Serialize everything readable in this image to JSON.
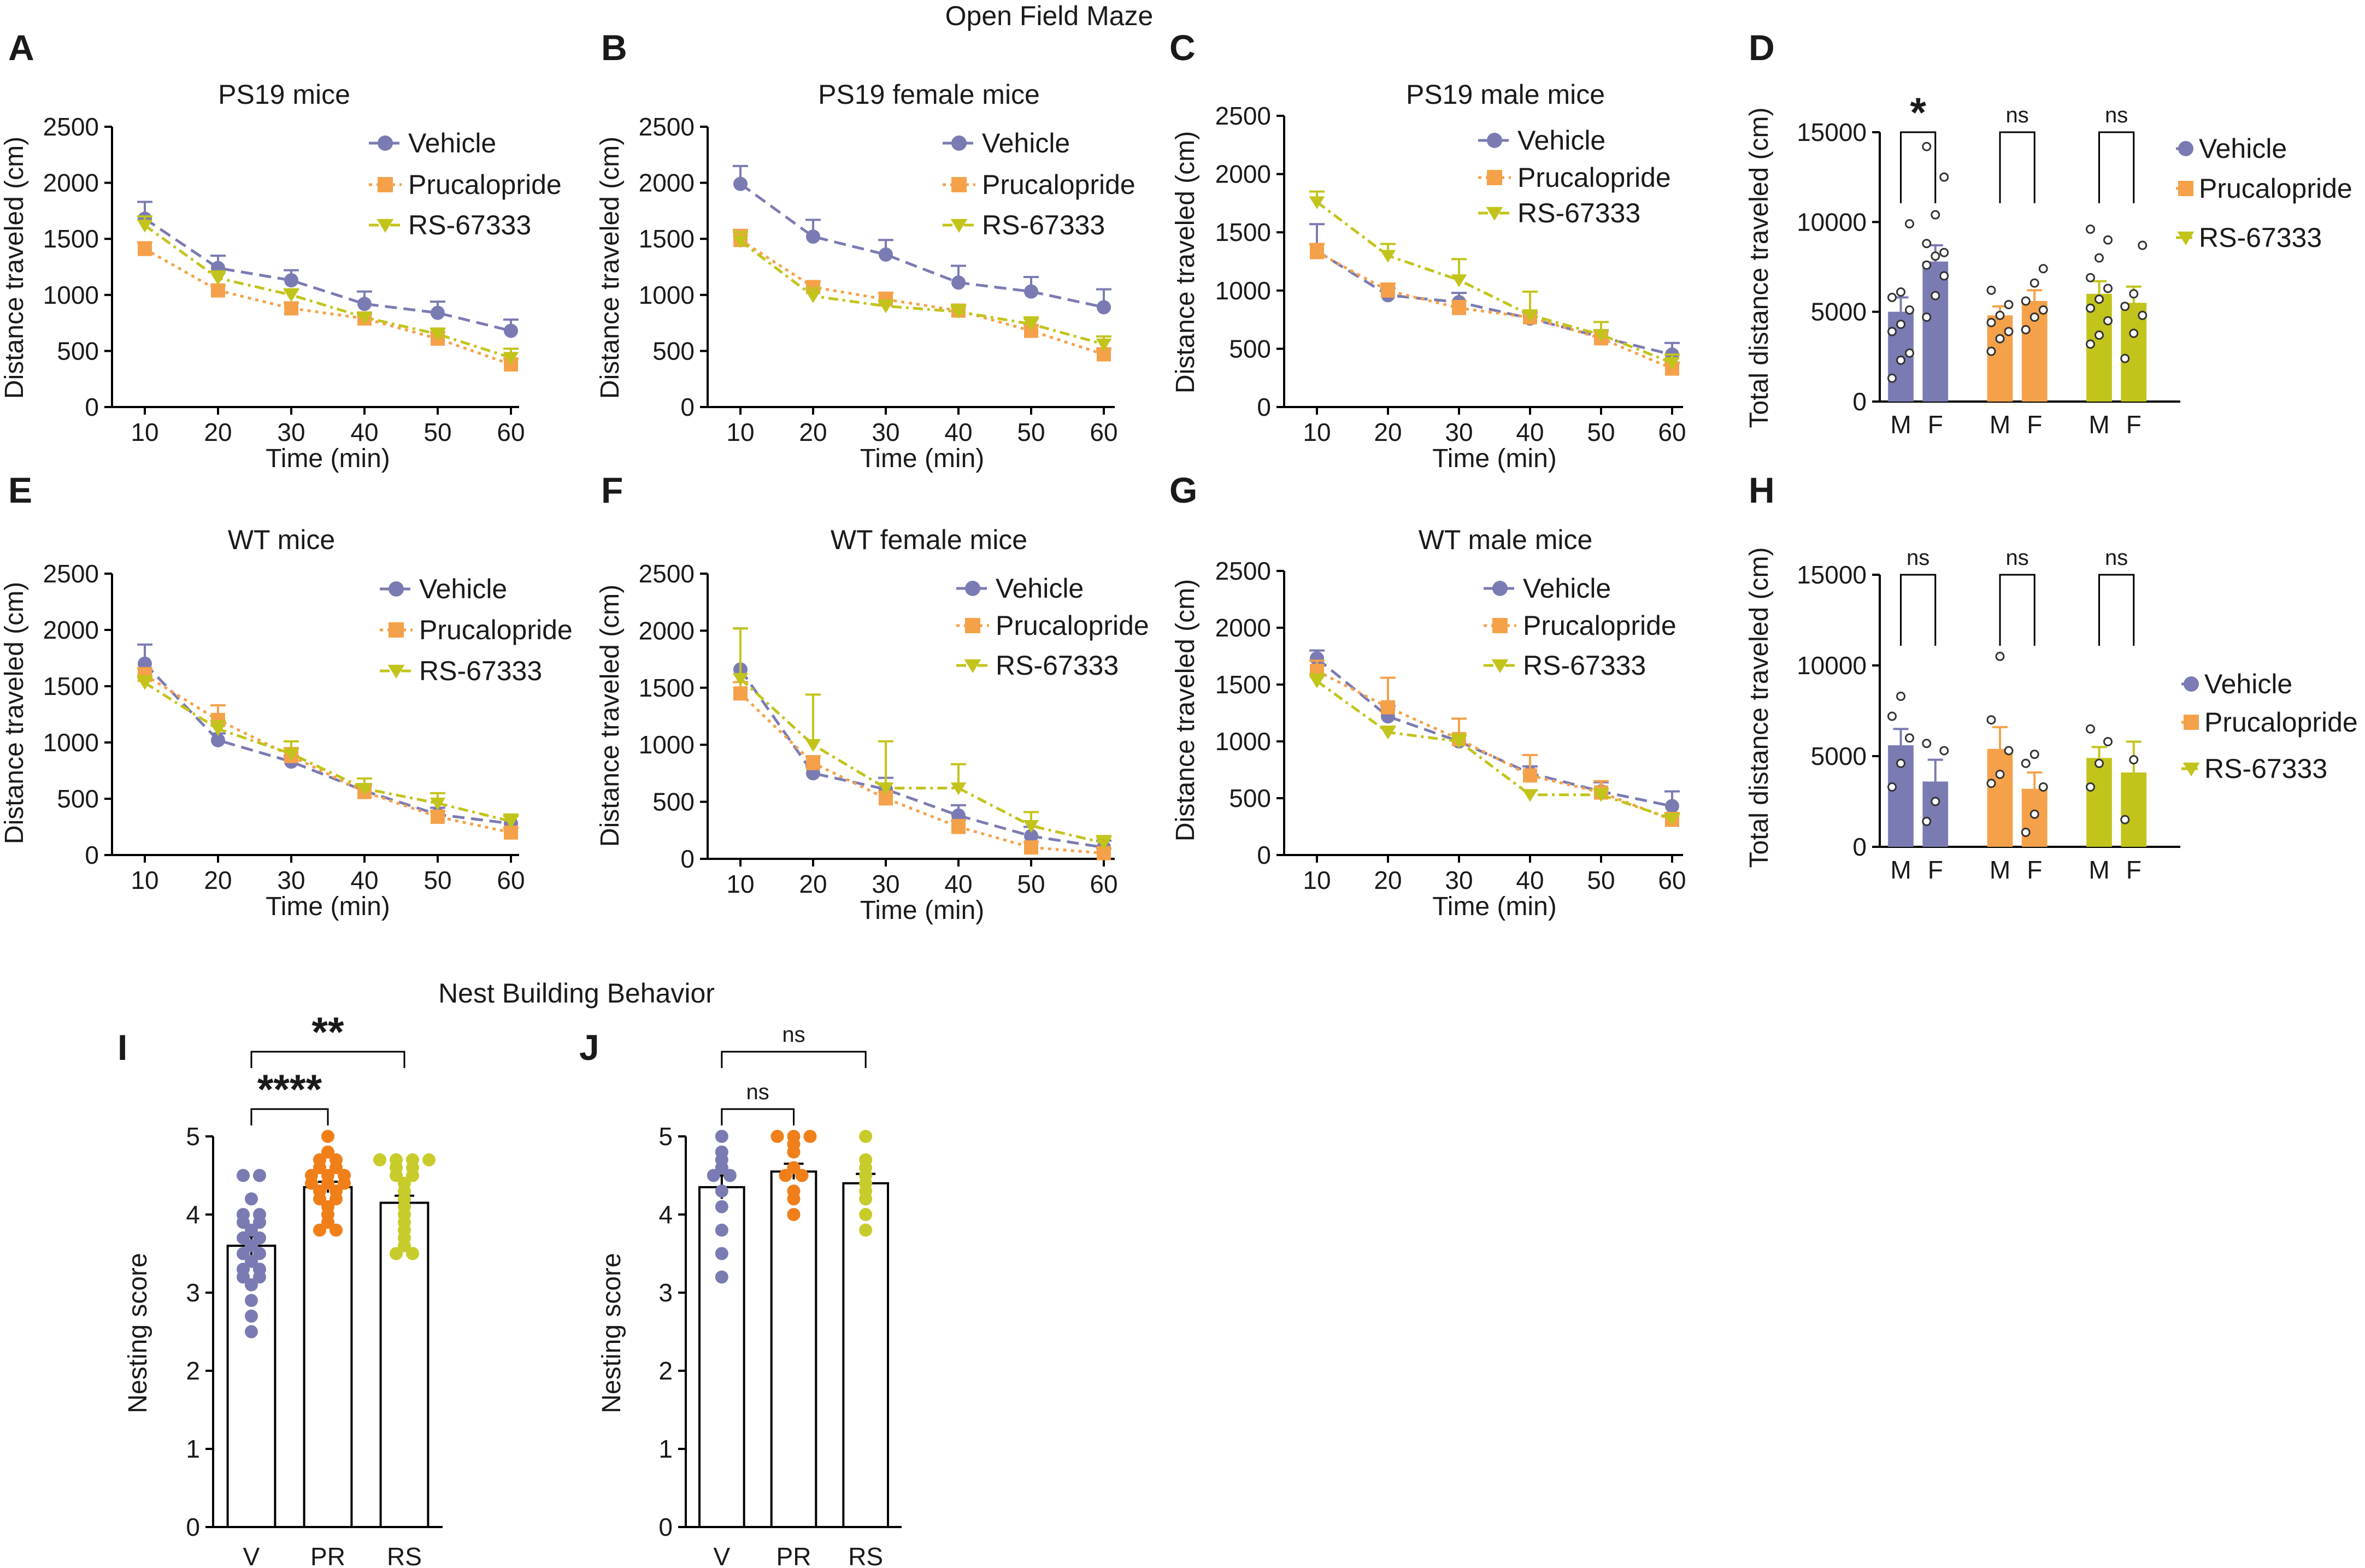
{
  "sections": {
    "open_field": "Open Field Maze",
    "nest": "Nest Building Behavior"
  },
  "colors": {
    "vehicle": "#7b7bb3",
    "prucalopride": "#f5a14a",
    "rs": "#c2c41c",
    "pr_dot": "#f07f1a",
    "rs_dot": "#c7cc2a"
  },
  "chart_data": [
    {
      "id": "A",
      "letter": "A",
      "type": "line",
      "title": "PS19 mice",
      "xlabel": "Time (min)",
      "ylabel": "Distance traveled (cm)",
      "x": [
        10,
        20,
        30,
        40,
        50,
        60
      ],
      "ylim": [
        0,
        2500
      ],
      "yticks": [
        0,
        500,
        1000,
        1500,
        2000,
        2500
      ],
      "series": [
        {
          "name": "Vehicle",
          "values": [
            1680,
            1240,
            1130,
            920,
            840,
            680
          ],
          "err": [
            150,
            110,
            90,
            110,
            100,
            100
          ]
        },
        {
          "name": "Prucalopride",
          "values": [
            1410,
            1040,
            880,
            790,
            610,
            380
          ],
          "err": [
            60,
            40,
            50,
            40,
            60,
            50
          ]
        },
        {
          "name": "RS-67333",
          "values": [
            1620,
            1150,
            1000,
            800,
            650,
            440
          ],
          "err": [
            80,
            60,
            50,
            40,
            50,
            80
          ]
        }
      ]
    },
    {
      "id": "B",
      "letter": "B",
      "type": "line",
      "title": "PS19 female mice",
      "xlabel": "Time (min)",
      "ylabel": "Distance traveled (cm)",
      "x": [
        10,
        20,
        30,
        40,
        50,
        60
      ],
      "ylim": [
        0,
        2500
      ],
      "yticks": [
        0,
        500,
        1000,
        1500,
        2000,
        2500
      ],
      "series": [
        {
          "name": "Vehicle",
          "values": [
            1990,
            1520,
            1360,
            1110,
            1030,
            890
          ],
          "err": [
            160,
            150,
            130,
            150,
            130,
            160
          ]
        },
        {
          "name": "Prucalopride",
          "values": [
            1490,
            1070,
            960,
            860,
            680,
            470
          ],
          "err": [
            90,
            50,
            60,
            40,
            50,
            50
          ]
        },
        {
          "name": "RS-67333",
          "values": [
            1480,
            990,
            900,
            850,
            740,
            560
          ],
          "err": [
            80,
            70,
            50,
            60,
            60,
            70
          ]
        }
      ]
    },
    {
      "id": "C",
      "letter": "C",
      "type": "line",
      "title": "PS19 male mice",
      "xlabel": "Time (min)",
      "ylabel": "Distance traveled (cm)",
      "x": [
        10,
        20,
        30,
        40,
        50,
        60
      ],
      "ylim": [
        0,
        2500
      ],
      "yticks": [
        0,
        500,
        1000,
        1500,
        2000,
        2500
      ],
      "series": [
        {
          "name": "Vehicle",
          "values": [
            1340,
            960,
            900,
            760,
            600,
            450
          ],
          "err": [
            230,
            60,
            80,
            50,
            60,
            100
          ]
        },
        {
          "name": "Prucalopride",
          "values": [
            1330,
            1000,
            850,
            770,
            590,
            330
          ],
          "err": [
            70,
            60,
            60,
            50,
            60,
            50
          ]
        },
        {
          "name": "RS-67333",
          "values": [
            1760,
            1300,
            1090,
            790,
            620,
            380
          ],
          "err": [
            90,
            100,
            180,
            200,
            110,
            70
          ]
        }
      ]
    },
    {
      "id": "D",
      "letter": "D",
      "type": "bar",
      "ylabel": "Total distance traveled (cm)",
      "ylim": [
        0,
        15000
      ],
      "yticks": [
        0,
        5000,
        10000,
        15000
      ],
      "legend": [
        "Vehicle",
        "Prucalopride",
        "RS-67333"
      ],
      "bars": [
        {
          "group": "Vehicle",
          "label": "M",
          "value": 5000,
          "err": 800,
          "points": [
            1300,
            2300,
            2700,
            3900,
            4300,
            5100,
            5800,
            6100,
            9900
          ]
        },
        {
          "group": "Vehicle",
          "label": "F",
          "value": 7800,
          "err": 900,
          "points": [
            4700,
            5900,
            7000,
            7600,
            8100,
            8300,
            8800,
            10400,
            12500,
            14200
          ]
        },
        {
          "group": "Prucalopride",
          "label": "M",
          "value": 4800,
          "err": 500,
          "points": [
            2800,
            3500,
            3900,
            4400,
            4800,
            5400,
            6200
          ]
        },
        {
          "group": "Prucalopride",
          "label": "F",
          "value": 5600,
          "err": 600,
          "points": [
            4000,
            4700,
            5100,
            5600,
            6600,
            7400
          ]
        },
        {
          "group": "RS-67333",
          "label": "M",
          "value": 6000,
          "err": 700,
          "points": [
            3200,
            3700,
            4500,
            5200,
            5700,
            6300,
            6900,
            8000,
            9000,
            9600
          ]
        },
        {
          "group": "RS-67333",
          "label": "F",
          "value": 5500,
          "err": 900,
          "points": [
            2400,
            3800,
            4800,
            5300,
            6000,
            8700
          ]
        }
      ],
      "comparisons": [
        {
          "from": 0,
          "to": 1,
          "label": "*"
        },
        {
          "from": 2,
          "to": 3,
          "label": "ns"
        },
        {
          "from": 4,
          "to": 5,
          "label": "ns"
        }
      ]
    },
    {
      "id": "E",
      "letter": "E",
      "type": "line",
      "title": "WT mice",
      "xlabel": "Time (min)",
      "ylabel": "Distance traveled (cm)",
      "x": [
        10,
        20,
        30,
        40,
        50,
        60
      ],
      "ylim": [
        0,
        2500
      ],
      "yticks": [
        0,
        500,
        1000,
        1500,
        2000,
        2500
      ],
      "series": [
        {
          "name": "Vehicle",
          "values": [
            1700,
            1020,
            830,
            570,
            360,
            280
          ],
          "err": [
            170,
            60,
            50,
            60,
            60,
            70
          ]
        },
        {
          "name": "Prucalopride",
          "values": [
            1600,
            1200,
            880,
            560,
            340,
            200
          ],
          "err": [
            60,
            130,
            70,
            60,
            50,
            40
          ]
        },
        {
          "name": "RS-67333",
          "values": [
            1530,
            1120,
            900,
            590,
            460,
            300
          ],
          "err": [
            60,
            70,
            110,
            90,
            90,
            60
          ]
        }
      ]
    },
    {
      "id": "F",
      "letter": "F",
      "type": "line",
      "title": "WT female mice",
      "xlabel": "Time (min)",
      "ylabel": "Distance traveled (cm)",
      "x": [
        10,
        20,
        30,
        40,
        50,
        60
      ],
      "ylim": [
        0,
        2500
      ],
      "yticks": [
        0,
        500,
        1000,
        1500,
        2000,
        2500
      ],
      "series": [
        {
          "name": "Vehicle",
          "values": [
            1660,
            750,
            610,
            380,
            200,
            100
          ],
          "err": [
            360,
            60,
            100,
            90,
            80,
            60
          ]
        },
        {
          "name": "Prucalopride",
          "values": [
            1450,
            840,
            530,
            280,
            100,
            50
          ],
          "err": [
            100,
            60,
            60,
            60,
            50,
            40
          ]
        },
        {
          "name": "RS-67333",
          "values": [
            1580,
            1000,
            620,
            620,
            290,
            140
          ],
          "err": [
            440,
            440,
            410,
            210,
            120,
            60
          ]
        }
      ]
    },
    {
      "id": "G",
      "letter": "G",
      "type": "line",
      "title": "WT male mice",
      "xlabel": "Time (min)",
      "ylabel": "Distance traveled (cm)",
      "x": [
        10,
        20,
        30,
        40,
        50,
        60
      ],
      "ylim": [
        0,
        2500
      ],
      "yticks": [
        0,
        500,
        1000,
        1500,
        2000,
        2500
      ],
      "series": [
        {
          "name": "Vehicle",
          "values": [
            1730,
            1220,
            1000,
            720,
            560,
            430
          ],
          "err": [
            70,
            90,
            60,
            60,
            80,
            130
          ]
        },
        {
          "name": "Prucalopride",
          "values": [
            1620,
            1300,
            1020,
            700,
            550,
            310
          ],
          "err": [
            90,
            260,
            180,
            180,
            100,
            60
          ]
        },
        {
          "name": "RS-67333",
          "values": [
            1530,
            1080,
            1000,
            530,
            530,
            320
          ],
          "err": [
            60,
            50,
            60,
            40,
            50,
            40
          ]
        }
      ]
    },
    {
      "id": "H",
      "letter": "H",
      "type": "bar",
      "ylabel": "Total distance traveled (cm)",
      "ylim": [
        0,
        15000
      ],
      "yticks": [
        0,
        5000,
        10000,
        15000
      ],
      "legend": [
        "Vehicle",
        "Prucalopride",
        "RS-67333"
      ],
      "bars": [
        {
          "group": "Vehicle",
          "label": "M",
          "value": 5600,
          "err": 900,
          "points": [
            3300,
            4600,
            6000,
            7200,
            8300
          ]
        },
        {
          "group": "Vehicle",
          "label": "F",
          "value": 3600,
          "err": 1200,
          "points": [
            1400,
            2500,
            5300,
            5700
          ]
        },
        {
          "group": "Prucalopride",
          "label": "M",
          "value": 5400,
          "err": 1200,
          "points": [
            3500,
            4000,
            5300,
            7000,
            10500
          ]
        },
        {
          "group": "Prucalopride",
          "label": "F",
          "value": 3200,
          "err": 900,
          "points": [
            800,
            1800,
            3300,
            4600,
            5100
          ]
        },
        {
          "group": "RS-67333",
          "label": "M",
          "value": 4900,
          "err": 600,
          "points": [
            3300,
            4600,
            5800,
            6500
          ]
        },
        {
          "group": "RS-67333",
          "label": "F",
          "value": 4100,
          "err": 1700,
          "points": [
            1500,
            4800
          ]
        }
      ],
      "comparisons": [
        {
          "from": 0,
          "to": 1,
          "label": "ns"
        },
        {
          "from": 2,
          "to": 3,
          "label": "ns"
        },
        {
          "from": 4,
          "to": 5,
          "label": "ns"
        }
      ]
    },
    {
      "id": "I",
      "letter": "I",
      "type": "bar",
      "ylabel": "Nesting score",
      "ylim": [
        0,
        5
      ],
      "yticks": [
        0,
        1,
        2,
        3,
        4,
        5
      ],
      "bars": [
        {
          "group": "Vehicle",
          "label": "V",
          "value": 3.6,
          "err": 0.12,
          "points": [
            2.5,
            2.7,
            2.9,
            3.1,
            3.2,
            3.2,
            3.3,
            3.3,
            3.4,
            3.5,
            3.5,
            3.6,
            3.7,
            3.7,
            3.8,
            3.9,
            3.9,
            4.0,
            4.0,
            4.2,
            4.5,
            4.5
          ]
        },
        {
          "group": "Prucalopride",
          "label": "PR",
          "value": 4.35,
          "err": 0.07,
          "points": [
            3.8,
            3.8,
            3.9,
            4.0,
            4.1,
            4.2,
            4.2,
            4.3,
            4.3,
            4.4,
            4.4,
            4.4,
            4.5,
            4.5,
            4.5,
            4.6,
            4.6,
            4.7,
            4.7,
            4.8,
            5.0
          ]
        },
        {
          "group": "RS-67333",
          "label": "RS",
          "value": 4.15,
          "err": 0.09,
          "points": [
            3.5,
            3.5,
            3.6,
            3.7,
            3.8,
            3.9,
            4.0,
            4.1,
            4.2,
            4.3,
            4.4,
            4.5,
            4.5,
            4.6,
            4.6,
            4.7,
            4.7,
            4.7,
            4.7
          ]
        }
      ],
      "comparisons": [
        {
          "from": 0,
          "to": 1,
          "label": "****"
        },
        {
          "from": 0,
          "to": 2,
          "label": "**"
        }
      ]
    },
    {
      "id": "J",
      "letter": "J",
      "type": "bar",
      "ylabel": "Nesting score",
      "ylim": [
        0,
        5
      ],
      "yticks": [
        0,
        1,
        2,
        3,
        4,
        5
      ],
      "bars": [
        {
          "group": "Vehicle",
          "label": "V",
          "value": 4.35,
          "err": 0.15,
          "points": [
            3.2,
            3.5,
            3.8,
            4.1,
            4.3,
            4.5,
            4.5,
            4.6,
            4.7,
            4.8,
            5.0
          ]
        },
        {
          "group": "Prucalopride",
          "label": "PR",
          "value": 4.55,
          "err": 0.1,
          "points": [
            4.0,
            4.2,
            4.3,
            4.5,
            4.5,
            4.6,
            4.8,
            4.9,
            5.0,
            5.0,
            5.0
          ]
        },
        {
          "group": "RS-67333",
          "label": "RS",
          "value": 4.4,
          "err": 0.12,
          "points": [
            3.8,
            4.0,
            4.2,
            4.3,
            4.4,
            4.5,
            4.6,
            4.7,
            5.0
          ]
        }
      ],
      "comparisons": [
        {
          "from": 0,
          "to": 1,
          "label": "ns"
        },
        {
          "from": 0,
          "to": 2,
          "label": "ns"
        }
      ]
    }
  ]
}
